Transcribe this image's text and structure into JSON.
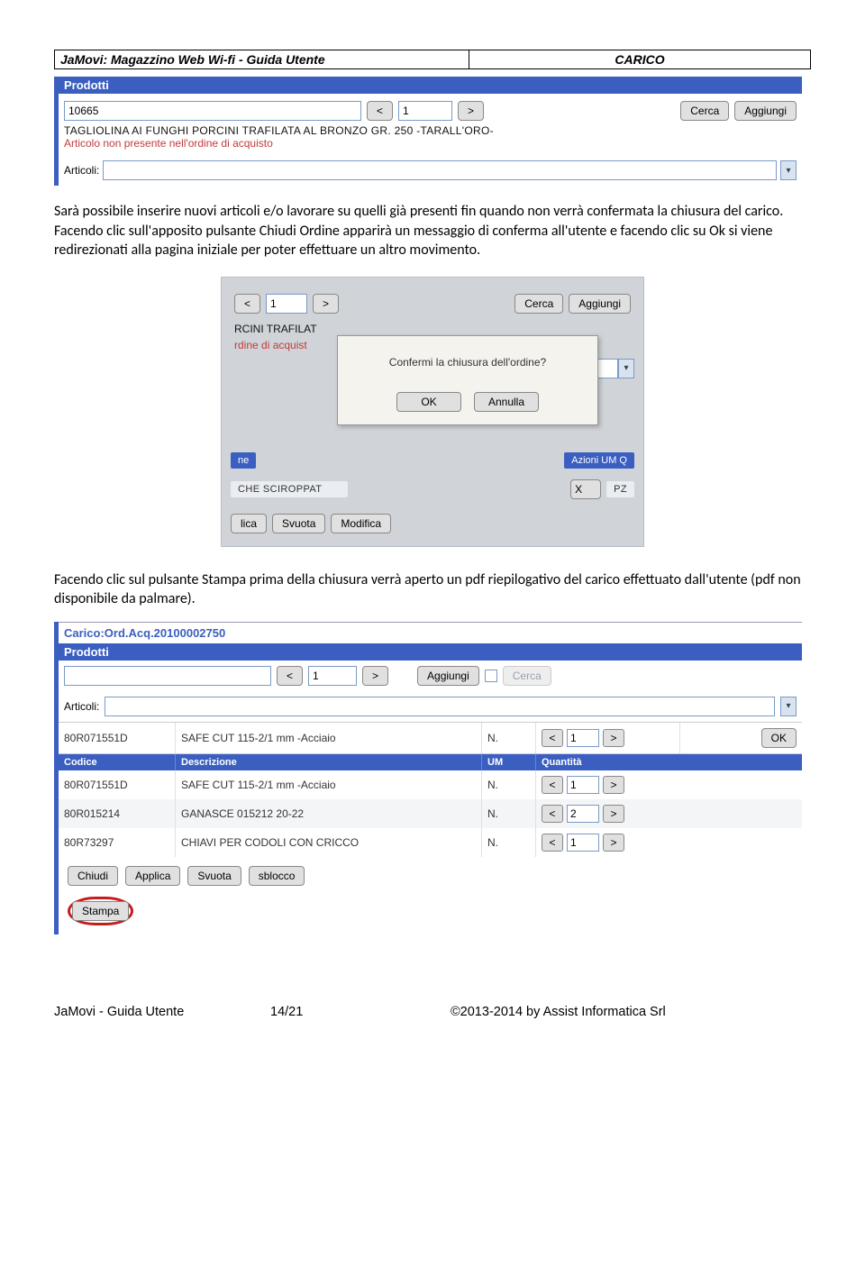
{
  "header": {
    "left": "JaMovi: Magazzino Web Wi-fi   -   Guida Utente",
    "right": "CARICO"
  },
  "ss1": {
    "bluebar": "Prodotti",
    "codice": "10665",
    "qty": "1",
    "lt": "<",
    "gt": ">",
    "cerca": "Cerca",
    "aggiungi": "Aggiungi",
    "desc": "TAGLIOLINA AI FUNGHI PORCINI TRAFILATA AL BRONZO GR. 250 -TARALL'ORO-",
    "warn": "Articolo non presente nell'ordine di acquisto",
    "articoli_label": "Articoli:"
  },
  "para1": "Sarà possibile inserire nuovi articoli e/o lavorare su quelli già presenti fin quando non verrà confermata la chiusura del carico. Facendo clic sull'apposito pulsante Chiudi Ordine apparirà un messaggio di conferma all'utente e facendo clic su Ok si viene redirezionati alla pagina iniziale per poter effettuare un altro movimento.",
  "ss2": {
    "lt": "<",
    "gt": ">",
    "qty": "1",
    "cerca": "Cerca",
    "aggiungi": "Aggiungi",
    "frag1": "RCINI TRAFILAT",
    "frag2": "rdine di acquist",
    "dialog_msg": "Confermi la chiusura dell'ordine?",
    "ok": "OK",
    "annulla": "Annulla",
    "head_ne": "ne",
    "head_azioni": "Azioni UM Q",
    "row_text": "CHE SCIROPPAT",
    "row_x": "X",
    "row_pz": "PZ",
    "b_lica": "lica",
    "b_svuota": "Svuota",
    "b_modifica": "Modifica"
  },
  "para2": "Facendo clic sul pulsante Stampa prima della chiusura verrà aperto un pdf riepilogativo del carico effettuato dall'utente (pdf non disponibile da palmare).",
  "ss3": {
    "title": "Carico:Ord.Acq.20100002750",
    "bluebar": "Prodotti",
    "qty": "1",
    "lt": "<",
    "gt": ">",
    "aggiungi": "Aggiungi",
    "cerca": "Cerca",
    "articoli_label": "Articoli:",
    "row1": {
      "code": "80R071551D",
      "desc": "SAFE CUT 115-2/1 mm -Acciaio",
      "um": "N.",
      "qty": "1",
      "ok": "OK"
    },
    "th": {
      "code": "Codice",
      "desc": "Descrizione",
      "um": "UM",
      "qty": "Quantità"
    },
    "rows": [
      {
        "code": "80R071551D",
        "desc": "SAFE CUT 115-2/1 mm -Acciaio",
        "um": "N.",
        "qty": "1"
      },
      {
        "code": "80R015214",
        "desc": "GANASCE 015212 20-22",
        "um": "N.",
        "qty": "2"
      },
      {
        "code": "80R73297",
        "desc": "CHIAVI PER CODOLI CON CRICCO",
        "um": "N.",
        "qty": "1"
      }
    ],
    "b_chiudi": "Chiudi",
    "b_applica": "Applica",
    "b_svuota": "Svuota",
    "b_sblocco": "sblocco",
    "b_stampa": "Stampa"
  },
  "footer": {
    "left": "JaMovi - Guida Utente",
    "mid": "14/21",
    "right": "©2013-2014 by Assist Informatica  Srl"
  }
}
